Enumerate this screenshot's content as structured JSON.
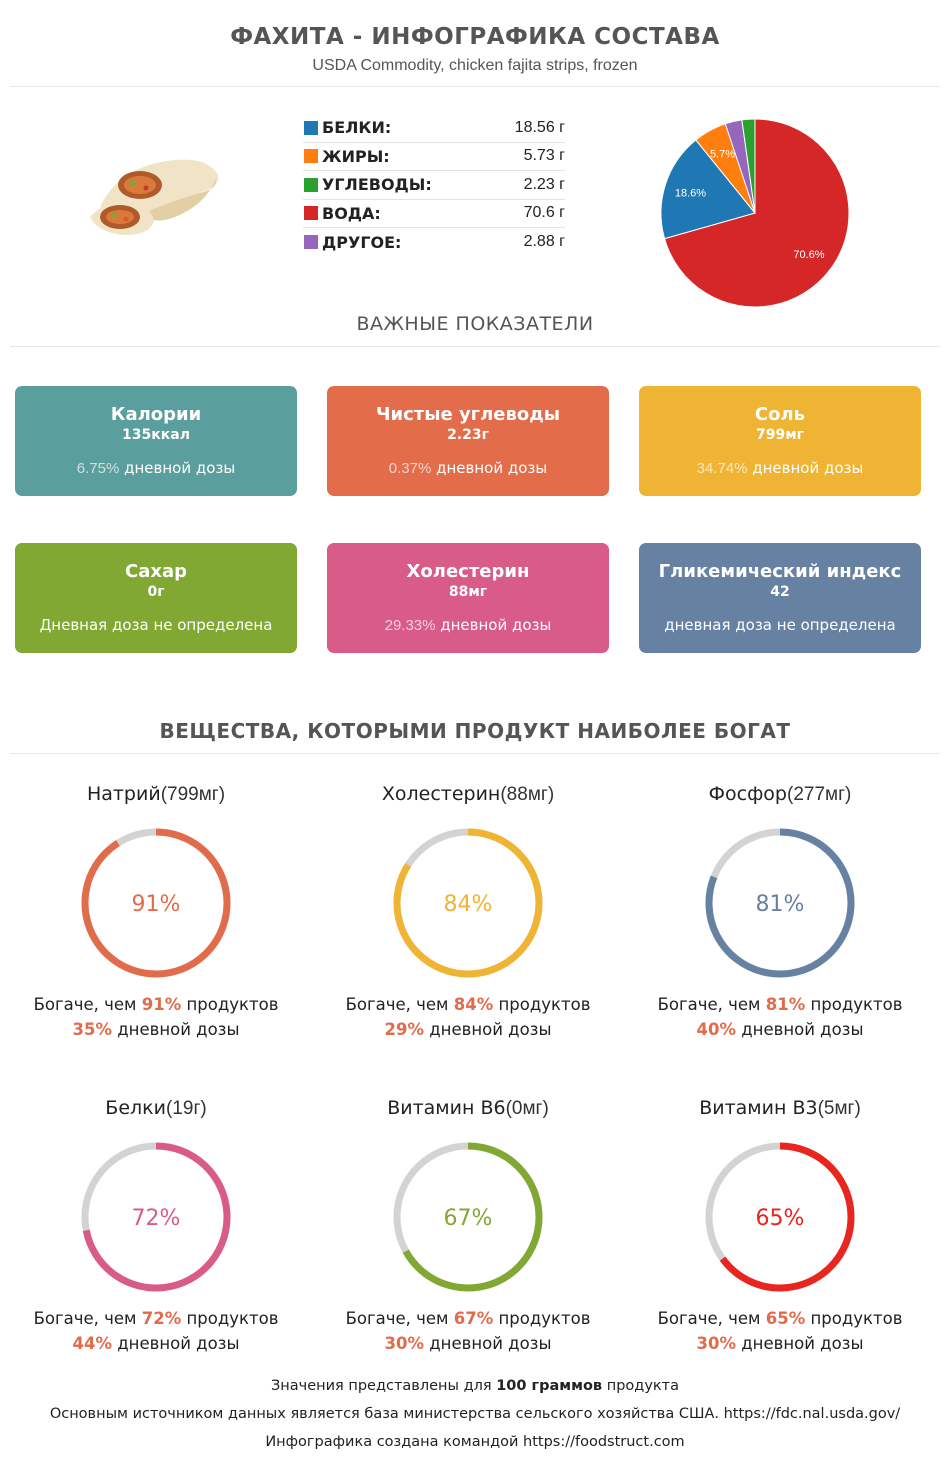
{
  "header": {
    "title": "ФАХИТА - ИНФОГРАФИКА СОСТАВА",
    "subtitle": "USDA Commodity, chicken fajita strips, frozen"
  },
  "macros": [
    {
      "name": "БЕЛКИ:",
      "value": "18.56 г",
      "color": "#1f77b4"
    },
    {
      "name": "ЖИРЫ:",
      "value": "5.73 г",
      "color": "#ff7f0e"
    },
    {
      "name": "УГЛЕВОДЫ:",
      "value": "2.23 г",
      "color": "#2ca02c"
    },
    {
      "name": "ВОДА:",
      "value": "70.6 г",
      "color": "#d62728"
    },
    {
      "name": "ДРУГОЕ:",
      "value": "2.88 г",
      "color": "#9467bd"
    }
  ],
  "chart_data": {
    "type": "pie",
    "categories": [
      "Белки",
      "Жиры",
      "Углеводы",
      "Вода",
      "Другое"
    ],
    "values": [
      18.56,
      5.73,
      2.23,
      70.6,
      2.88
    ],
    "labels": [
      "18.6%",
      "5.7%",
      "",
      "70.6%",
      ""
    ],
    "colors": [
      "#1f77b4",
      "#ff7f0e",
      "#2ca02c",
      "#d62728",
      "#9467bd"
    ]
  },
  "key_section_title": "ВАЖНЫЕ ПОКАЗАТЕЛИ",
  "cards": [
    {
      "title": "Калории",
      "value": "135ккал",
      "pct": "6.75%",
      "dose": " дневной дозы",
      "color": "#5b9e9e"
    },
    {
      "title": "Чистые углеводы",
      "value": "2.23г",
      "pct": "0.37%",
      "dose": " дневной дозы",
      "color": "#e36c4b"
    },
    {
      "title": "Соль",
      "value": "799мг",
      "pct": "34.74%",
      "dose": " дневной дозы",
      "color": "#f0b434"
    },
    {
      "title": "Сахар",
      "value": "0г",
      "pct": "",
      "dose": "Дневная доза не определена",
      "color": "#82a834"
    },
    {
      "title": "Холестерин",
      "value": "88мг",
      "pct": "29.33%",
      "dose": " дневной дозы",
      "color": "#d95b87"
    },
    {
      "title": "Гликемический индекс",
      "value": "42",
      "pct": "",
      "dose": "дневная доза не определена",
      "color": "#6781a3"
    }
  ],
  "rich_section_title": "ВЕЩЕСТВА, КОТОРЫМИ ПРОДУКТ НАИБОЛЕЕ БОГАТ",
  "rich_labels": {
    "prefix": "Богаче, чем ",
    "suffix": " продуктов",
    "dose_suffix": " дневной дозы"
  },
  "rich": [
    {
      "name": "Натрий",
      "amount": "(799мг)",
      "percent": 91,
      "percent_label": "91%",
      "dose": "35%",
      "color": "#e06c4c"
    },
    {
      "name": "Холестерин",
      "amount": "(88мг)",
      "percent": 84,
      "percent_label": "84%",
      "dose": "29%",
      "color": "#f0b434"
    },
    {
      "name": "Фосфор",
      "amount": "(277мг)",
      "percent": 81,
      "percent_label": "81%",
      "dose": "40%",
      "color": "#6781a3"
    },
    {
      "name": "Белки",
      "amount": "(19г)",
      "percent": 72,
      "percent_label": "72%",
      "dose": "44%",
      "color": "#d95b87"
    },
    {
      "name": "Витамин В6",
      "amount": "(0мг)",
      "percent": 67,
      "percent_label": "67%",
      "dose": "30%",
      "color": "#82a834"
    },
    {
      "name": "Витамин В3",
      "amount": "(5мг)",
      "percent": 65,
      "percent_label": "65%",
      "dose": "30%",
      "color": "#e8251f"
    }
  ],
  "footer": {
    "line1_a": "Значения представлены для ",
    "line1_b": "100 ",
    "line1_c": "граммов",
    "line1_d": " продукта",
    "line2": "Основным источником данных является база министерства сельского хозяйства США. https://fdc.nal.usda.gov/",
    "line3": "Инфографика создана командой https://foodstruct.com"
  }
}
